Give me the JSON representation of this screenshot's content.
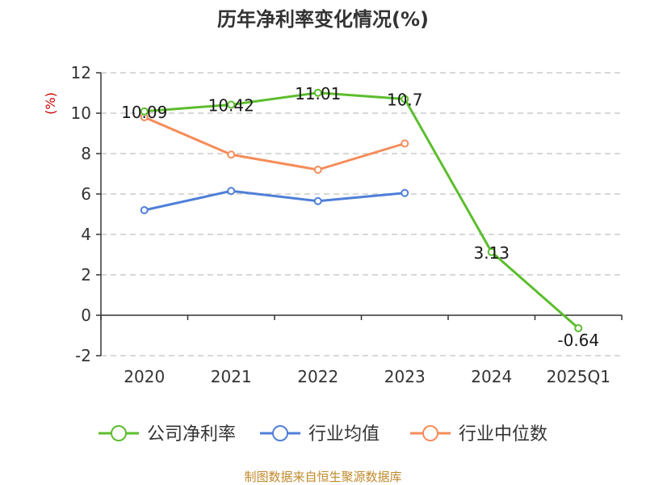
{
  "chart_data": {
    "type": "line",
    "title": "历年净利率变化情况(%)",
    "ylabel": "(%)",
    "categories": [
      "2020",
      "2021",
      "2022",
      "2023",
      "2024",
      "2025Q1"
    ],
    "ylim": [
      -2,
      12
    ],
    "yticks": [
      -2,
      0,
      2,
      4,
      6,
      8,
      10,
      12
    ],
    "grid": "horizontal-dashed",
    "legend_position": "bottom",
    "series": [
      {
        "name": "公司净利率",
        "color": "#5cbd2e",
        "values": [
          10.09,
          10.42,
          11.01,
          10.7,
          3.13,
          -0.64
        ],
        "labels": [
          "10.09",
          "10.42",
          "11.01",
          "10.7",
          "3.13",
          "-0.64"
        ],
        "show_labels": true
      },
      {
        "name": "行业均值",
        "color": "#4f7fd8",
        "values": [
          5.2,
          6.15,
          5.65,
          6.05,
          null,
          null
        ],
        "show_labels": false
      },
      {
        "name": "行业中位数",
        "color": "#f58c5a",
        "values": [
          9.8,
          7.95,
          7.2,
          8.5,
          null,
          null
        ],
        "show_labels": false
      }
    ]
  },
  "footer": {
    "source": "制图数据来自恒生聚源数据库"
  }
}
